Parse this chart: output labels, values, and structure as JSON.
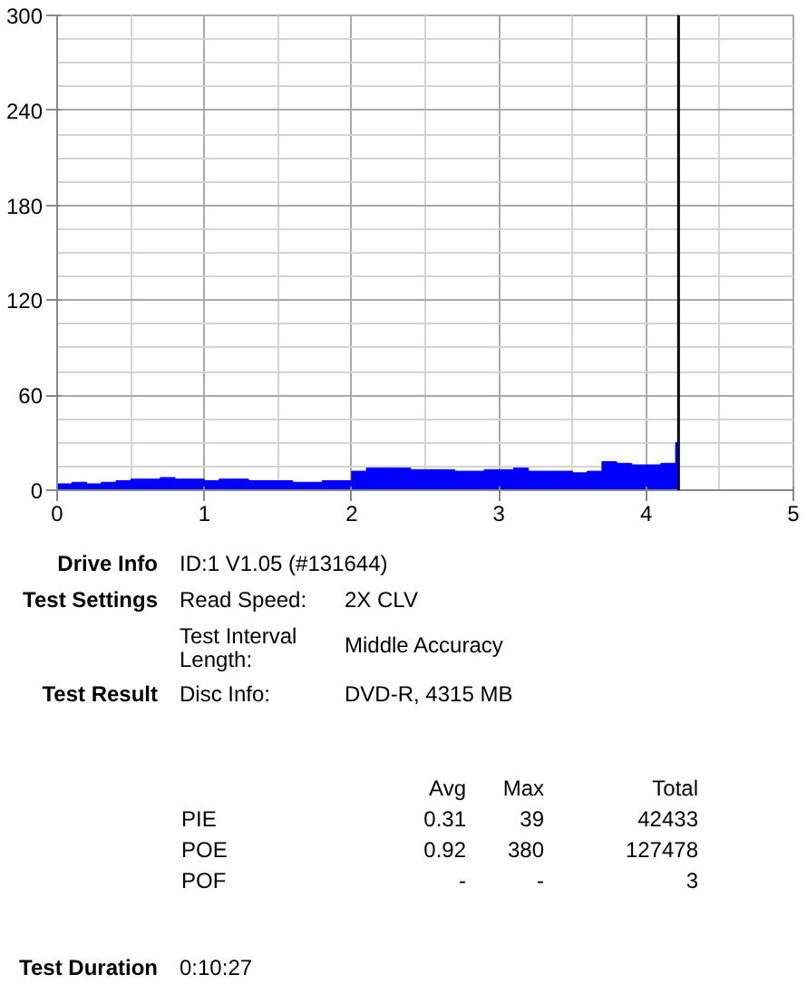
{
  "chart_data": {
    "type": "histogram",
    "bins": [
      0,
      0.1,
      0.2,
      0.3,
      0.4,
      0.5,
      0.6,
      0.7,
      0.8,
      0.9,
      1.0,
      1.1,
      1.2,
      1.3,
      1.4,
      1.5,
      1.6,
      1.7,
      1.8,
      1.9,
      2.0,
      2.1,
      2.2,
      2.3,
      2.4,
      2.5,
      2.6,
      2.7,
      2.8,
      2.9,
      3.0,
      3.1,
      3.2,
      3.3,
      3.4,
      3.5,
      3.6,
      3.7,
      3.8,
      3.9,
      4.0,
      4.1,
      4.2,
      4.22
    ],
    "values": [
      4,
      5,
      4,
      5,
      6,
      7,
      7,
      8,
      7,
      7,
      6,
      7,
      7,
      6,
      6,
      6,
      5,
      5,
      6,
      6,
      12,
      14,
      14,
      14,
      13,
      13,
      13,
      12,
      12,
      13,
      13,
      14,
      12,
      12,
      12,
      11,
      12,
      18,
      17,
      16,
      16,
      17,
      30
    ],
    "color": "#0000ff",
    "xlim": [
      0,
      5
    ],
    "ylim": [
      0,
      300
    ],
    "xticks": [
      0,
      1,
      2,
      3,
      4,
      5
    ],
    "yticks": [
      0,
      60,
      120,
      180,
      240,
      300
    ],
    "grid": true,
    "ref_lines": [
      {
        "axis": "x",
        "value": 4.22,
        "color": "#000000"
      }
    ],
    "annotations": [
      "Drive Info",
      "ID:1 V1.05 (#131644)",
      "Test Settings",
      "Read Speed:",
      "2X CLV",
      "Test Interval Length:",
      "Middle Accuracy",
      "Test Result",
      "Disc Info:",
      "DVD-R, 4315 MB",
      "Avg",
      "Max",
      "Total",
      "PIE",
      "0.31",
      "39",
      "42433",
      "POE",
      "0.92",
      "380",
      "127478",
      "POF",
      "-",
      "-",
      "3",
      "Test Duration",
      "0:10:27"
    ]
  }
}
